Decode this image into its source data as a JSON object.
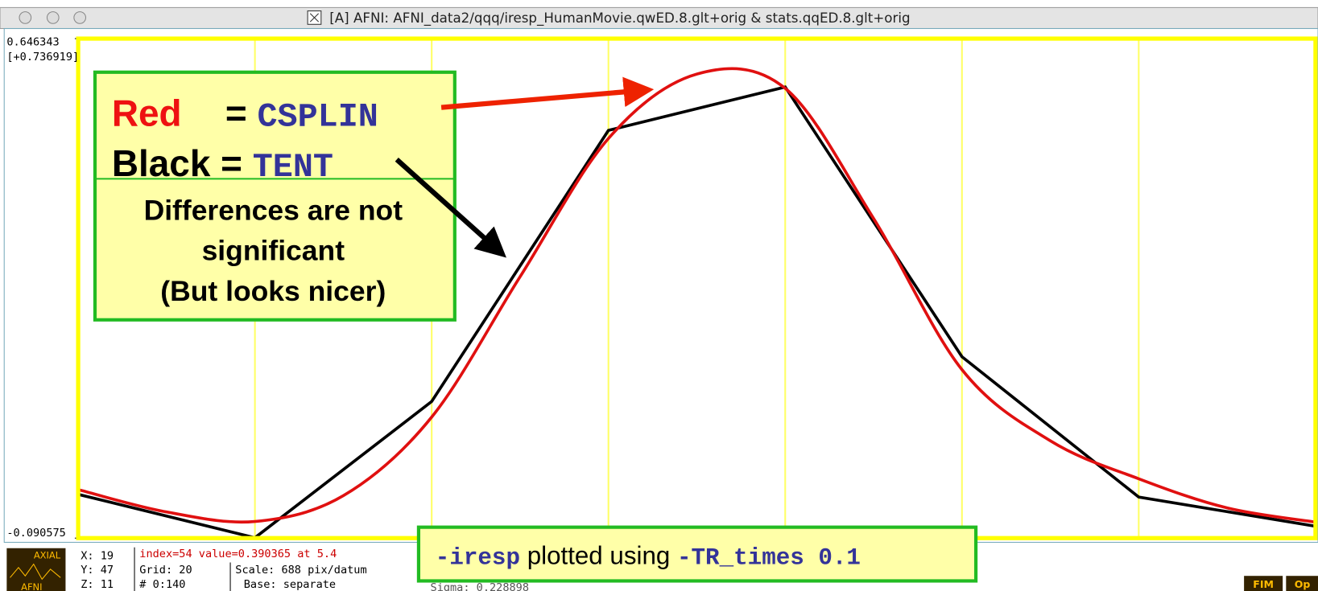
{
  "window": {
    "title": "[A] AFNI: AFNI_data2/qqq/iresp_HumanMovie.qwED.8.glt+orig & stats.qqED.8.glt+orig"
  },
  "chart_data": {
    "type": "line",
    "range_label": "[+0.736919]",
    "xlim": [
      0,
      7
    ],
    "xticks": [
      1,
      2,
      3,
      4,
      5,
      6
    ],
    "ylim": [
      -0.090575,
      0.646343
    ],
    "yticks": [
      -0.090575,
      0.646343
    ],
    "grid": true,
    "series": [
      {
        "color": "#000000",
        "smooth": false,
        "x": [
          0,
          1,
          2,
          3,
          4,
          5,
          6,
          7
        ],
        "values": [
          -0.026,
          -0.09,
          0.111,
          0.511,
          0.575,
          0.177,
          -0.03,
          -0.073
        ]
      },
      {
        "color": "#e01010",
        "smooth": true,
        "x": [
          0,
          0.5,
          1,
          1.5,
          2,
          2.5,
          3,
          3.5,
          4,
          4.5,
          5,
          5.5,
          6,
          6.5,
          7
        ],
        "values": [
          -0.019,
          -0.052,
          -0.066,
          -0.028,
          0.088,
          0.295,
          0.499,
          0.594,
          0.573,
          0.381,
          0.158,
          0.053,
          -0.003,
          -0.046,
          -0.067
        ]
      }
    ]
  },
  "legend_box": {
    "red_word": "Red",
    "red_eq": "= ",
    "red_name": "CSPLIN",
    "black_word": "Black",
    "black_eq": " = ",
    "black_name": "TENT",
    "note": [
      "Differences are not",
      "significant",
      "(But looks nicer)"
    ]
  },
  "caption": {
    "opt1": "-iresp",
    "mid": " plotted using ",
    "opt2": "-TR_times 0.1"
  },
  "status": {
    "coords": [
      "X: 19",
      "Y: 47",
      "Z: 11"
    ],
    "index_line": "index=54 value=0.390365 at 5.4",
    "grid": "Grid:   20",
    "count": "#   0:140",
    "scale": "Scale: 688 pix/datum",
    "base": "Base: separate",
    "sigma": "Sigma:  0.228898",
    "logo_top": "AXIAL",
    "logo_bottom": "AFNI",
    "buttons": [
      "FIM",
      "Op"
    ]
  }
}
